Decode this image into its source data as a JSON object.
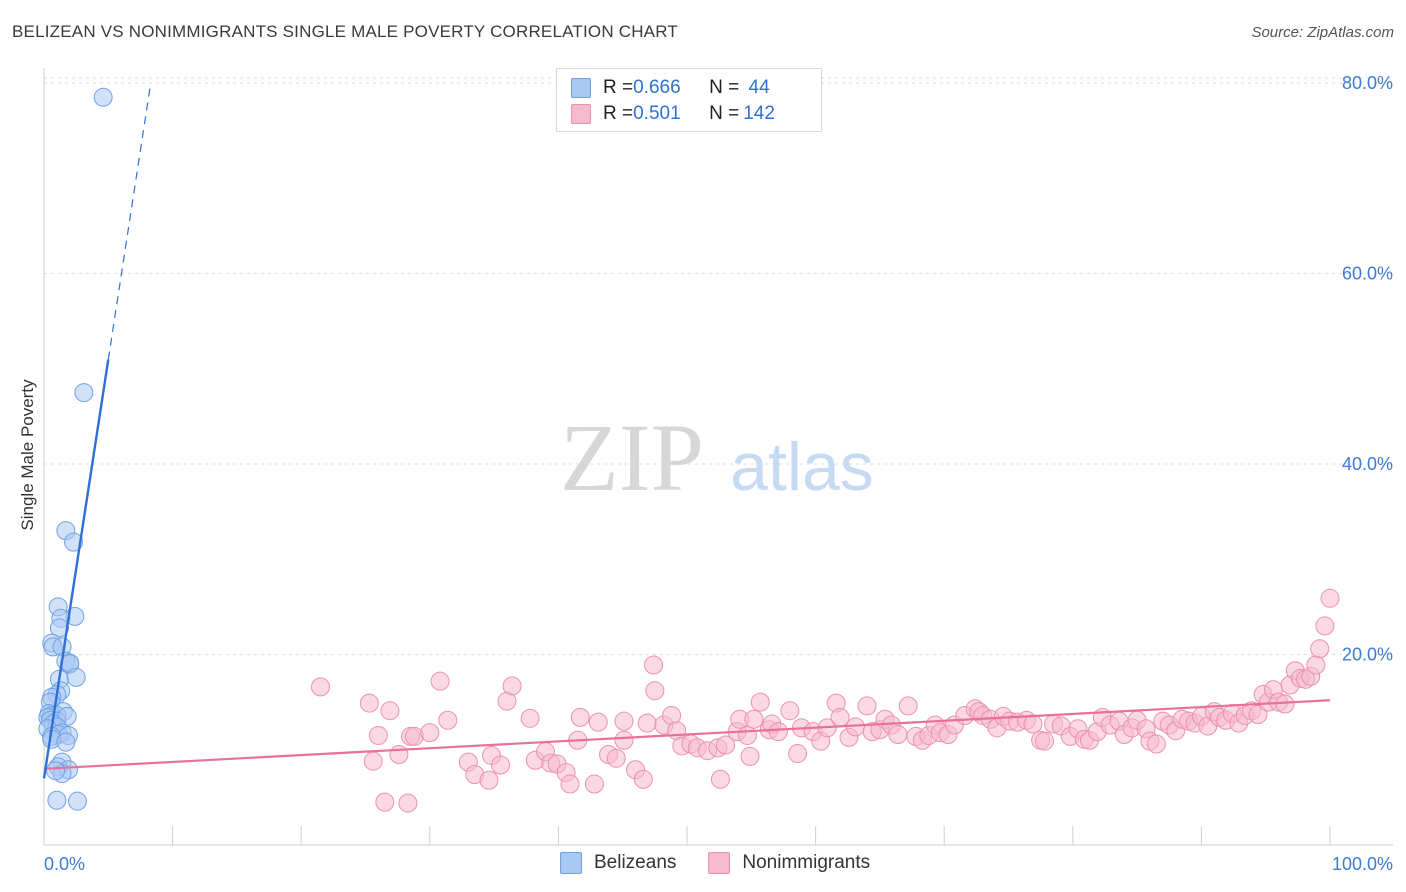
{
  "header": {
    "title": "BELIZEAN VS NONIMMIGRANTS SINGLE MALE POVERTY CORRELATION CHART",
    "source": "Source: ZipAtlas.com"
  },
  "watermark": {
    "zip": "ZIP",
    "atlas": "atlas"
  },
  "colors": {
    "blue_fill": "#a9c9f2",
    "blue_stroke": "#6fa2e6",
    "blue_line": "#2e70d6",
    "pink_fill": "#f6b9cd",
    "pink_stroke": "#ec91b0",
    "pink_line": "#e8709a",
    "axis_text": "#3d7bd6"
  },
  "legend": {
    "rows": [
      {
        "r_label": "R = ",
        "r_value": "0.666",
        "n_label": "N = ",
        "n_value": " 44"
      },
      {
        "r_label": "R = ",
        "r_value": "0.501",
        "n_label": "N = ",
        "n_value": "142"
      }
    ]
  },
  "bottom_legend": [
    "Belizeans",
    "Nonimmigrants"
  ],
  "chart_data": {
    "type": "scatter",
    "title": "BELIZEAN VS NONIMMIGRANTS SINGLE MALE POVERTY CORRELATION CHART",
    "xlabel": "",
    "ylabel": "Single Male Poverty",
    "xlim": [
      0,
      100
    ],
    "ylim": [
      0,
      82
    ],
    "x_tick_labels": [
      "0.0%",
      "100.0%"
    ],
    "y_ticks": [
      20,
      40,
      60,
      80
    ],
    "y_tick_labels": [
      "20.0%",
      "40.0%",
      "60.0%",
      "80.0%"
    ],
    "grid": true,
    "series": [
      {
        "name": "Belizeans",
        "R": 0.666,
        "N": 44,
        "trend": {
          "x0": 0,
          "y0": 7.0,
          "x1": 8.3,
          "y1": 80.0,
          "solid_until_x": 5.0
        },
        "points": [
          [
            4.6,
            78.5
          ],
          [
            3.1,
            47.5
          ],
          [
            1.7,
            33.0
          ],
          [
            2.3,
            31.8
          ],
          [
            1.1,
            25.0
          ],
          [
            2.4,
            24.0
          ],
          [
            1.3,
            23.8
          ],
          [
            1.2,
            22.8
          ],
          [
            0.6,
            21.2
          ],
          [
            0.7,
            20.8
          ],
          [
            1.4,
            20.8
          ],
          [
            1.7,
            19.3
          ],
          [
            2.0,
            19.0
          ],
          [
            2.0,
            19.1
          ],
          [
            1.2,
            17.4
          ],
          [
            2.5,
            17.6
          ],
          [
            1.3,
            16.2
          ],
          [
            1.0,
            15.8
          ],
          [
            0.6,
            15.5
          ],
          [
            0.5,
            15.0
          ],
          [
            1.5,
            14.0
          ],
          [
            0.4,
            13.8
          ],
          [
            0.6,
            13.6
          ],
          [
            1.0,
            13.6
          ],
          [
            0.3,
            13.4
          ],
          [
            0.5,
            13.1
          ],
          [
            1.0,
            13.0
          ],
          [
            1.8,
            13.5
          ],
          [
            0.7,
            12.7
          ],
          [
            1.0,
            12.4
          ],
          [
            0.3,
            12.2
          ],
          [
            1.4,
            11.8
          ],
          [
            1.1,
            11.6
          ],
          [
            0.6,
            11.4
          ],
          [
            0.6,
            11.1
          ],
          [
            1.9,
            11.5
          ],
          [
            1.7,
            10.8
          ],
          [
            1.4,
            8.7
          ],
          [
            1.1,
            8.2
          ],
          [
            1.9,
            7.9
          ],
          [
            1.4,
            7.5
          ],
          [
            1.0,
            4.7
          ],
          [
            2.6,
            4.6
          ],
          [
            0.9,
            7.8
          ]
        ]
      },
      {
        "name": "Nonimmigrants",
        "R": 0.501,
        "N": 142,
        "trend": {
          "x0": 0,
          "y0": 8.0,
          "x1": 100,
          "y1": 15.2
        },
        "points": [
          [
            21.5,
            16.6
          ],
          [
            25.3,
            14.9
          ],
          [
            25.6,
            8.8
          ],
          [
            26.0,
            11.5
          ],
          [
            26.5,
            4.5
          ],
          [
            26.9,
            14.1
          ],
          [
            27.6,
            9.5
          ],
          [
            28.5,
            11.4
          ],
          [
            28.8,
            11.4
          ],
          [
            28.3,
            4.4
          ],
          [
            30.8,
            17.2
          ],
          [
            31.4,
            13.1
          ],
          [
            33.0,
            8.7
          ],
          [
            33.5,
            7.4
          ],
          [
            34.6,
            6.8
          ],
          [
            34.8,
            9.4
          ],
          [
            35.5,
            8.4
          ],
          [
            36.0,
            15.1
          ],
          [
            36.4,
            16.7
          ],
          [
            37.8,
            13.3
          ],
          [
            38.2,
            8.9
          ],
          [
            39.0,
            9.8
          ],
          [
            39.4,
            8.6
          ],
          [
            39.9,
            8.5
          ],
          [
            40.6,
            7.6
          ],
          [
            40.9,
            6.4
          ],
          [
            41.5,
            11.0
          ],
          [
            41.7,
            13.4
          ],
          [
            42.8,
            6.4
          ],
          [
            43.1,
            12.9
          ],
          [
            43.9,
            9.5
          ],
          [
            44.5,
            9.1
          ],
          [
            45.1,
            11.0
          ],
          [
            45.1,
            13.0
          ],
          [
            46.0,
            7.9
          ],
          [
            46.6,
            6.9
          ],
          [
            46.9,
            12.8
          ],
          [
            47.4,
            18.9
          ],
          [
            47.5,
            16.2
          ],
          [
            48.2,
            12.6
          ],
          [
            48.8,
            13.6
          ],
          [
            49.2,
            12.0
          ],
          [
            49.6,
            10.4
          ],
          [
            50.3,
            10.6
          ],
          [
            50.8,
            10.2
          ],
          [
            51.6,
            9.9
          ],
          [
            52.4,
            10.2
          ],
          [
            52.6,
            6.9
          ],
          [
            53.0,
            10.5
          ],
          [
            53.9,
            11.9
          ],
          [
            54.1,
            13.2
          ],
          [
            54.7,
            11.5
          ],
          [
            55.2,
            13.2
          ],
          [
            55.7,
            15.0
          ],
          [
            56.4,
            12.1
          ],
          [
            56.6,
            12.7
          ],
          [
            57.1,
            11.9
          ],
          [
            58.0,
            14.1
          ],
          [
            58.6,
            9.6
          ],
          [
            58.9,
            12.3
          ],
          [
            59.8,
            11.9
          ],
          [
            60.4,
            10.9
          ],
          [
            60.9,
            12.3
          ],
          [
            61.6,
            14.9
          ],
          [
            61.9,
            13.4
          ],
          [
            62.6,
            11.3
          ],
          [
            63.1,
            12.4
          ],
          [
            64.0,
            14.6
          ],
          [
            64.4,
            11.9
          ],
          [
            65.0,
            12.1
          ],
          [
            65.4,
            13.2
          ],
          [
            65.9,
            12.6
          ],
          [
            66.4,
            11.6
          ],
          [
            67.2,
            14.6
          ],
          [
            67.8,
            11.4
          ],
          [
            68.3,
            11.0
          ],
          [
            68.8,
            11.5
          ],
          [
            69.3,
            12.6
          ],
          [
            69.7,
            11.8
          ],
          [
            70.3,
            11.6
          ],
          [
            70.8,
            12.6
          ],
          [
            71.6,
            13.6
          ],
          [
            72.4,
            14.3
          ],
          [
            72.7,
            14.0
          ],
          [
            73.0,
            13.6
          ],
          [
            73.6,
            13.2
          ],
          [
            74.1,
            12.3
          ],
          [
            74.6,
            13.5
          ],
          [
            75.1,
            13.0
          ],
          [
            75.7,
            12.9
          ],
          [
            76.4,
            13.1
          ],
          [
            76.9,
            12.7
          ],
          [
            77.5,
            11.0
          ],
          [
            77.8,
            10.9
          ],
          [
            78.5,
            12.7
          ],
          [
            79.1,
            12.5
          ],
          [
            79.8,
            11.4
          ],
          [
            80.4,
            12.2
          ],
          [
            80.9,
            11.1
          ],
          [
            81.3,
            11.0
          ],
          [
            81.9,
            11.9
          ],
          [
            82.3,
            13.4
          ],
          [
            82.9,
            12.6
          ],
          [
            83.6,
            13.0
          ],
          [
            84.0,
            11.6
          ],
          [
            84.6,
            12.3
          ],
          [
            85.0,
            13.1
          ],
          [
            85.7,
            12.2
          ],
          [
            86.0,
            10.9
          ],
          [
            86.5,
            10.6
          ],
          [
            87.0,
            13.0
          ],
          [
            87.5,
            12.6
          ],
          [
            88.0,
            12.0
          ],
          [
            88.5,
            13.2
          ],
          [
            89.0,
            13.0
          ],
          [
            89.5,
            12.8
          ],
          [
            90.0,
            13.5
          ],
          [
            90.5,
            12.5
          ],
          [
            91.0,
            14.0
          ],
          [
            91.4,
            13.4
          ],
          [
            91.9,
            13.1
          ],
          [
            92.4,
            13.8
          ],
          [
            92.9,
            12.8
          ],
          [
            93.4,
            13.6
          ],
          [
            93.9,
            14.1
          ],
          [
            94.4,
            13.7
          ],
          [
            94.8,
            15.8
          ],
          [
            95.2,
            15.0
          ],
          [
            95.6,
            16.3
          ],
          [
            96.0,
            15.0
          ],
          [
            96.5,
            14.8
          ],
          [
            96.9,
            16.8
          ],
          [
            97.3,
            18.3
          ],
          [
            97.7,
            17.5
          ],
          [
            98.1,
            17.4
          ],
          [
            98.5,
            17.7
          ],
          [
            98.9,
            18.9
          ],
          [
            99.2,
            20.6
          ],
          [
            99.6,
            23.0
          ],
          [
            100.0,
            25.9
          ],
          [
            30.0,
            11.8
          ],
          [
            54.9,
            9.3
          ]
        ]
      }
    ]
  }
}
